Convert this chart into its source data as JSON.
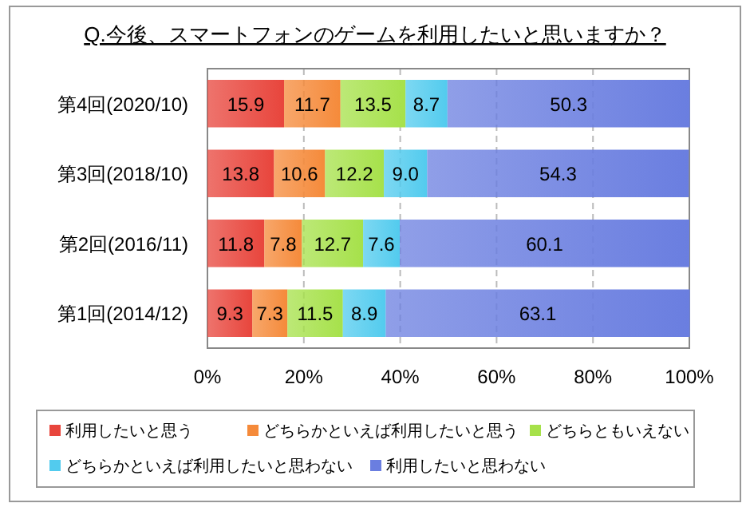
{
  "chart_data": {
    "type": "bar",
    "orientation": "horizontal",
    "stacked": true,
    "title": "Q.今後、スマートフォンのゲームを利用したいと思いますか？",
    "categories": [
      "第4回(2020/10)",
      "第3回(2018/10)",
      "第2回(2016/11)",
      "第1回(2014/12)"
    ],
    "series": [
      {
        "name": "利用したいと思う",
        "color": "#e8453c",
        "values": [
          15.9,
          13.8,
          11.8,
          9.3
        ]
      },
      {
        "name": "どちらかといえば利用したいと思う",
        "color": "#f58a3a",
        "values": [
          11.7,
          10.6,
          7.8,
          7.3
        ]
      },
      {
        "name": "どちらともいえない",
        "color": "#a6e14a",
        "values": [
          13.5,
          12.2,
          12.7,
          11.5
        ]
      },
      {
        "name": "どちらかといえば利用したいと思わない",
        "color": "#52cbee",
        "values": [
          8.7,
          9.0,
          7.6,
          8.9
        ],
        "value_labels": [
          "8.7",
          "9.0",
          "7.6",
          "8.9"
        ]
      },
      {
        "name": "利用したいと思わない",
        "color": "#6a7ee0",
        "values": [
          50.3,
          54.3,
          60.1,
          63.1
        ]
      }
    ],
    "xlim": [
      0,
      100
    ],
    "xticks": [
      {
        "value": 0,
        "label": "0%"
      },
      {
        "value": 20,
        "label": "20%"
      },
      {
        "value": 40,
        "label": "40%"
      },
      {
        "value": 60,
        "label": "60%"
      },
      {
        "value": 80,
        "label": "80%"
      },
      {
        "value": 100,
        "label": "100%"
      }
    ],
    "grid": "x",
    "legend": "bottom",
    "data_labels": true
  }
}
